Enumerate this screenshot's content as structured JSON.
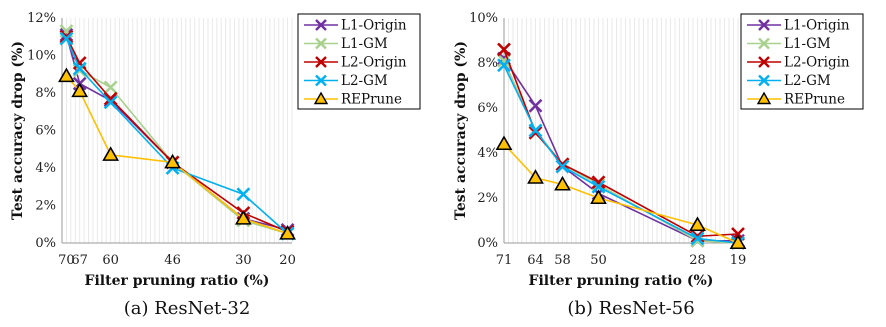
{
  "chart_data": [
    {
      "type": "line",
      "caption": "(a) ResNet-32",
      "xlabel": "Filter pruning ratio (%)",
      "ylabel": "Test accuracy drop (%)",
      "x": [
        70,
        67,
        60,
        46,
        30,
        20
      ],
      "xlim": [
        71,
        19
      ],
      "ylim": [
        0,
        12
      ],
      "yticks": [
        "0%",
        "2%",
        "4%",
        "6%",
        "8%",
        "10%",
        "12%"
      ],
      "ytick_values": [
        0,
        2,
        4,
        6,
        8,
        10,
        12
      ],
      "grid": "vertical minor gridlines",
      "legend_position": "top-right",
      "series": [
        {
          "name": "L1-Origin",
          "color": "#7030a0",
          "marker": "x",
          "values": [
            11.1,
            8.5,
            7.6,
            4.3,
            1.3,
            0.7
          ]
        },
        {
          "name": "L1-GM",
          "color": "#a9d18e",
          "marker": "x",
          "values": [
            11.3,
            9.2,
            8.3,
            4.3,
            1.2,
            0.5
          ]
        },
        {
          "name": "L2-Origin",
          "color": "#c00000",
          "marker": "x",
          "values": [
            11.0,
            9.6,
            7.7,
            4.3,
            1.6,
            0.6
          ]
        },
        {
          "name": "L2-GM",
          "color": "#00b0f0",
          "marker": "x",
          "values": [
            10.9,
            9.3,
            7.5,
            4.0,
            2.6,
            0.5
          ]
        },
        {
          "name": "REPrune",
          "color": "#ffc000",
          "marker": "triangle",
          "values": [
            8.9,
            8.1,
            4.7,
            4.3,
            1.3,
            0.5
          ]
        }
      ]
    },
    {
      "type": "line",
      "caption": "(b) ResNet-56",
      "xlabel": "Filter pruning ratio (%)",
      "ylabel": "Test accuracy drop (%)",
      "x": [
        71,
        64,
        58,
        50,
        28,
        19
      ],
      "xlim": [
        71,
        19
      ],
      "ylim": [
        0,
        10
      ],
      "yticks": [
        "0%",
        "2%",
        "4%",
        "6%",
        "8%",
        "10%"
      ],
      "ytick_values": [
        0,
        2,
        4,
        6,
        8,
        10
      ],
      "grid": "vertical minor gridlines",
      "legend_position": "top-right",
      "series": [
        {
          "name": "L1-Origin",
          "color": "#7030a0",
          "marker": "x",
          "values": [
            8.2,
            6.1,
            3.4,
            2.2,
            0.1,
            0.1
          ]
        },
        {
          "name": "L1-GM",
          "color": "#a9d18e",
          "marker": "x",
          "values": [
            8.1,
            5.0,
            3.5,
            2.6,
            0.1,
            0.0
          ]
        },
        {
          "name": "L2-Origin",
          "color": "#c00000",
          "marker": "x",
          "values": [
            8.6,
            4.9,
            3.5,
            2.7,
            0.3,
            0.4
          ]
        },
        {
          "name": "L2-GM",
          "color": "#00b0f0",
          "marker": "x",
          "values": [
            7.9,
            5.0,
            3.4,
            2.5,
            0.2,
            0.0
          ]
        },
        {
          "name": "REPrune",
          "color": "#ffc000",
          "marker": "triangle",
          "values": [
            4.4,
            2.9,
            2.6,
            2.0,
            0.8,
            0.0
          ]
        }
      ]
    }
  ]
}
